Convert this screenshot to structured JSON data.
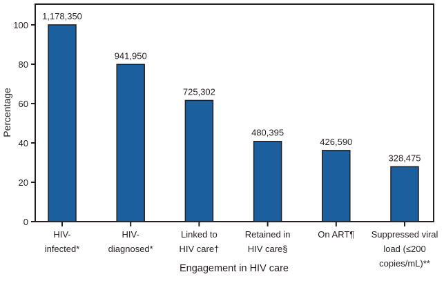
{
  "chart_data": {
    "type": "bar",
    "title": "",
    "xlabel": "Engagement in HIV care",
    "ylabel": "Percentage",
    "ylim": [
      0,
      110
    ],
    "yticks": [
      0,
      20,
      40,
      60,
      80,
      100
    ],
    "grid": false,
    "categories": [
      [
        "HIV-",
        "infected*"
      ],
      [
        "HIV-",
        "diagnosed*"
      ],
      [
        "Linked to",
        "HIV care†"
      ],
      [
        "Retained in",
        "HIV care§"
      ],
      [
        "On ART¶"
      ],
      [
        "Suppressed viral",
        "load (≤200",
        "copies/mL)**"
      ]
    ],
    "values": [
      100,
      79.9,
      61.6,
      40.8,
      36.2,
      27.9
    ],
    "data_labels": [
      "1,178,350",
      "941,950",
      "725,302",
      "480,395",
      "426,590",
      "328,475"
    ],
    "colors": {
      "bar": "#1b5f9f",
      "outline": "#231f20"
    }
  }
}
